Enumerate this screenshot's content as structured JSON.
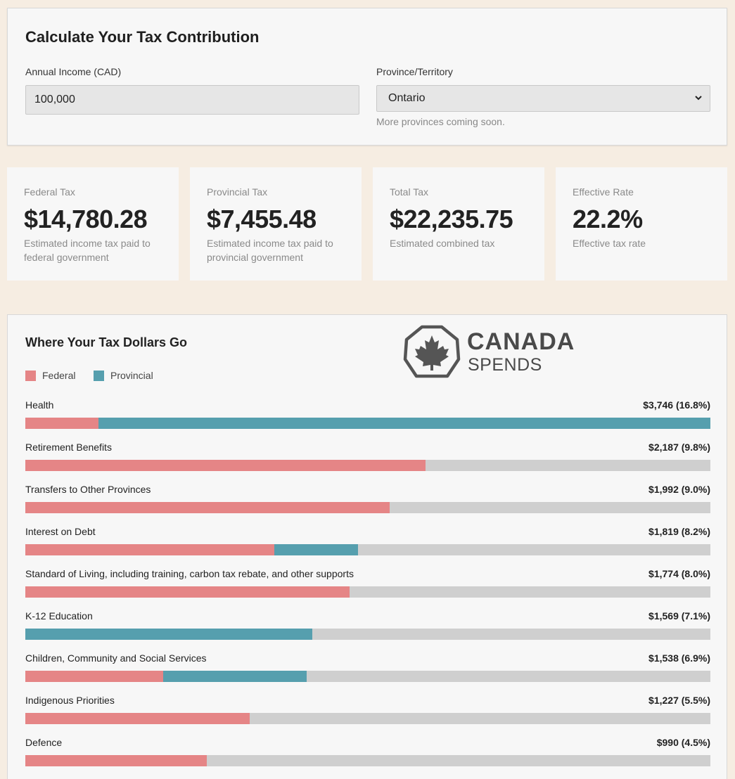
{
  "calculator": {
    "title": "Calculate Your Tax Contribution",
    "income_label": "Annual Income (CAD)",
    "income_value": "100,000",
    "province_label": "Province/Territory",
    "province_value": "Ontario",
    "province_note": "More provinces coming soon."
  },
  "summary": [
    {
      "label": "Federal Tax",
      "value": "$14,780.28",
      "desc": "Estimated income tax paid to federal government"
    },
    {
      "label": "Provincial Tax",
      "value": "$7,455.48",
      "desc": "Estimated income tax paid to provincial government"
    },
    {
      "label": "Total Tax",
      "value": "$22,235.75",
      "desc": "Estimated combined tax"
    },
    {
      "label": "Effective Rate",
      "value": "22.2%",
      "desc": "Effective tax rate"
    }
  ],
  "breakdown": {
    "title": "Where Your Tax Dollars Go",
    "legend": {
      "federal": "Federal",
      "provincial": "Provincial"
    },
    "logo": {
      "line1": "CANADA",
      "line2": "SPENDS"
    },
    "colors": {
      "federal": "#e58586",
      "provincial": "#569fae",
      "track": "#cfcfcf"
    },
    "items": [
      {
        "label": "Health",
        "value": "$3,746 (16.8%)",
        "federal": 0.107,
        "provincial": 0.893
      },
      {
        "label": "Retirement Benefits",
        "value": "$2,187 (9.8%)",
        "federal": 0.584,
        "provincial": 0
      },
      {
        "label": "Transfers to Other Provinces",
        "value": "$1,992 (9.0%)",
        "federal": 0.532,
        "provincial": 0
      },
      {
        "label": "Interest on Debt",
        "value": "$1,819 (8.2%)",
        "federal": 0.363,
        "provincial": 0.122
      },
      {
        "label": "Standard of Living, including training, carbon tax rebate, and other supports",
        "value": "$1,774 (8.0%)",
        "federal": 0.473,
        "provincial": 0
      },
      {
        "label": "K-12 Education",
        "value": "$1,569 (7.1%)",
        "federal": 0,
        "provincial": 0.419
      },
      {
        "label": "Children, Community and Social Services",
        "value": "$1,538 (6.9%)",
        "federal": 0.201,
        "provincial": 0.209
      },
      {
        "label": "Indigenous Priorities",
        "value": "$1,227 (5.5%)",
        "federal": 0.328,
        "provincial": 0
      },
      {
        "label": "Defence",
        "value": "$990 (4.5%)",
        "federal": 0.265,
        "provincial": 0
      }
    ]
  }
}
